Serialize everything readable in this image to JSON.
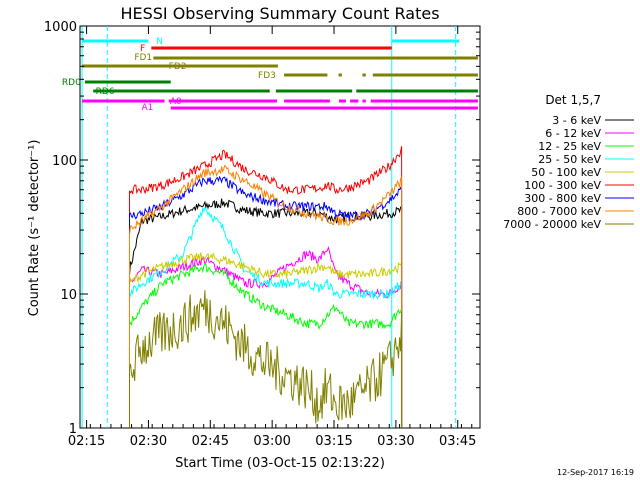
{
  "chart_data": {
    "type": "line",
    "title": "HESSI Observing Summary Count Rates",
    "xlabel": "Start Time (03-Oct-15 02:13:22)",
    "ylabel": "Count Rate (s⁻¹ detector⁻¹)",
    "yscale": "log",
    "ylim": [
      1,
      1000
    ],
    "xlim_minutes": [
      0,
      97
    ],
    "x_ticks": [
      {
        "label": "02:15",
        "t": 1.6
      },
      {
        "label": "02:30",
        "t": 16.6
      },
      {
        "label": "02:45",
        "t": 31.6
      },
      {
        "label": "03:00",
        "t": 46.6
      },
      {
        "label": "03:15",
        "t": 61.6
      },
      {
        "label": "03:30",
        "t": 76.6
      },
      {
        "label": "03:45",
        "t": 91.6
      }
    ],
    "y_ticks": [
      {
        "label": "1",
        "v": 1
      },
      {
        "label": "10",
        "v": 10
      },
      {
        "label": "100",
        "v": 100
      },
      {
        "label": "1000",
        "v": 1000
      }
    ],
    "legend": {
      "title": "Det 1,5,7",
      "placement": "right"
    },
    "series": [
      {
        "name": "3 - 6 keV",
        "color": "#000000",
        "x": [
          12,
          15,
          20,
          25,
          30,
          35,
          40,
          45,
          50,
          55,
          58,
          60,
          62,
          65,
          70,
          75,
          78
        ],
        "y": [
          15,
          35,
          38,
          42,
          45,
          48,
          42,
          40,
          40,
          40,
          40,
          38,
          36,
          38,
          38,
          40,
          42
        ]
      },
      {
        "name": "6 - 12 keV",
        "color": "#ff00ff",
        "x": [
          12,
          15,
          20,
          25,
          30,
          35,
          40,
          45,
          50,
          55,
          58,
          60,
          62,
          65,
          70,
          75,
          78
        ],
        "y": [
          12,
          15,
          14,
          16,
          18,
          15,
          12,
          12,
          16,
          20,
          18,
          22,
          14,
          12,
          10,
          10,
          12
        ]
      },
      {
        "name": "12 - 25 keV",
        "color": "#00ff00",
        "x": [
          12,
          15,
          20,
          25,
          30,
          35,
          40,
          45,
          50,
          55,
          58,
          60,
          62,
          65,
          70,
          75,
          78
        ],
        "y": [
          6,
          8,
          12,
          14,
          16,
          14,
          10,
          8,
          7,
          6,
          6,
          7,
          8,
          6,
          6,
          6,
          8
        ]
      },
      {
        "name": "25 - 50 keV",
        "color": "#00ffff",
        "x": [
          12,
          15,
          20,
          25,
          30,
          35,
          40,
          45,
          50,
          55,
          58,
          60,
          62,
          65,
          70,
          75,
          78
        ],
        "y": [
          10,
          12,
          15,
          20,
          45,
          30,
          15,
          12,
          12,
          12,
          11,
          12,
          10,
          10,
          10,
          10,
          12
        ]
      },
      {
        "name": "50 - 100 keV",
        "color": "#cccc00",
        "x": [
          12,
          15,
          20,
          25,
          30,
          35,
          40,
          45,
          50,
          55,
          58,
          60,
          62,
          65,
          70,
          75,
          78
        ],
        "y": [
          12,
          14,
          16,
          18,
          19,
          18,
          16,
          14,
          14,
          15,
          16,
          16,
          14,
          14,
          14,
          15,
          16
        ]
      },
      {
        "name": "100 - 300 keV",
        "color": "#ff0000",
        "x": [
          12,
          15,
          20,
          25,
          30,
          35,
          40,
          45,
          50,
          55,
          58,
          60,
          62,
          65,
          70,
          75,
          78
        ],
        "y": [
          60,
          60,
          65,
          75,
          90,
          110,
          85,
          75,
          60,
          60,
          62,
          65,
          60,
          62,
          70,
          90,
          120
        ]
      },
      {
        "name": "300 - 800 keV",
        "color": "#0000ff",
        "x": [
          12,
          15,
          20,
          25,
          30,
          35,
          40,
          45,
          50,
          55,
          58,
          60,
          62,
          65,
          70,
          75,
          78
        ],
        "y": [
          38,
          40,
          45,
          55,
          70,
          70,
          55,
          50,
          45,
          45,
          45,
          45,
          40,
          38,
          40,
          50,
          60
        ]
      },
      {
        "name": "800 - 7000 keV",
        "color": "#ff8000",
        "x": [
          12,
          15,
          20,
          25,
          30,
          35,
          40,
          45,
          50,
          55,
          58,
          60,
          62,
          65,
          70,
          75,
          78
        ],
        "y": [
          30,
          35,
          45,
          60,
          80,
          85,
          70,
          55,
          45,
          40,
          38,
          36,
          35,
          35,
          40,
          55,
          70
        ]
      },
      {
        "name": "7000 - 20000 keV",
        "color": "#808000",
        "x": [
          12,
          15,
          20,
          25,
          30,
          35,
          40,
          45,
          50,
          55,
          58,
          60,
          62,
          65,
          70,
          75,
          78
        ],
        "y": [
          2.5,
          4,
          5,
          6,
          8,
          6,
          4,
          3,
          2.5,
          2,
          1.5,
          2,
          1.5,
          1.5,
          2,
          3,
          5
        ]
      }
    ],
    "flag_bars": [
      {
        "label": "N",
        "color": "#00ffff"
      },
      {
        "label": "F",
        "color": "#ff0000"
      },
      {
        "label": "FD1",
        "color": "#808000"
      },
      {
        "label": "FD2",
        "color": "#808000"
      },
      {
        "label": "FD3",
        "color": "#808000"
      },
      {
        "label": "RD0",
        "color": "#008000"
      },
      {
        "label": "RD6",
        "color": "#008000"
      },
      {
        "label": "A1",
        "color": "#ff00ff"
      },
      {
        "label": "A0",
        "color": "#ff00ff"
      }
    ],
    "timestamp": "12-Sep-2017 16:19"
  }
}
